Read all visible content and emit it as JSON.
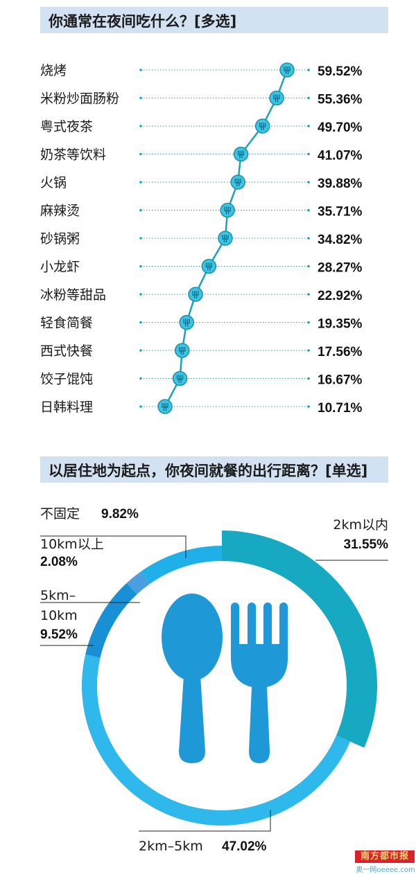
{
  "chart_data": [
    {
      "type": "scatter",
      "title": "你通常在夜间吃什么？[多选]",
      "categories": [
        "烧烤",
        "米粉炒面肠粉",
        "粤式夜茶",
        "奶茶等饮料",
        "火锅",
        "麻辣烫",
        "砂锅粥",
        "小龙虾",
        "冰粉等甜品",
        "轻食简餐",
        "西式快餐",
        "饺子馄饨",
        "日韩料理"
      ],
      "values": [
        59.52,
        55.36,
        49.7,
        41.07,
        39.88,
        35.71,
        34.82,
        28.27,
        22.92,
        19.35,
        17.56,
        16.67,
        10.71
      ],
      "labels": [
        "59.52%",
        "55.36%",
        "49.70%",
        "41.07%",
        "39.88%",
        "35.71%",
        "34.82%",
        "28.27%",
        "22.92%",
        "19.35%",
        "17.56%",
        "16.67%",
        "10.71%"
      ],
      "marker_icon": "fork-icon",
      "colors": {
        "line": "#1aa3b8",
        "marker": "#3ec3e3",
        "marker_stroke": "#1592ae",
        "dots": "#1aa3b8"
      }
    },
    {
      "type": "pie",
      "title": "以居住地为起点，你夜间就餐的出行距离？[单选]",
      "slices": [
        {
          "name": "2km以内",
          "value": 31.55,
          "label": "31.55%",
          "color": "#17a9c2"
        },
        {
          "name": "2km-5km",
          "value": 47.02,
          "label": "47.02%",
          "color": "#2fb8ec"
        },
        {
          "name": "5km-10km",
          "value": 9.52,
          "label": "9.52%",
          "color": "#1990d6"
        },
        {
          "name": "10km以上",
          "value": 2.08,
          "label": "2.08%",
          "color": "#4aa0de"
        },
        {
          "name": "不固定",
          "value": 9.82,
          "label": "9.82%",
          "color": "#1fb0e9"
        }
      ],
      "center_icons": [
        "spoon-icon",
        "fork-icon"
      ],
      "icon_color": "#1e98d6"
    }
  ],
  "logo": {
    "name": "南方都市报",
    "sub": "奥一网oeeee.com"
  }
}
